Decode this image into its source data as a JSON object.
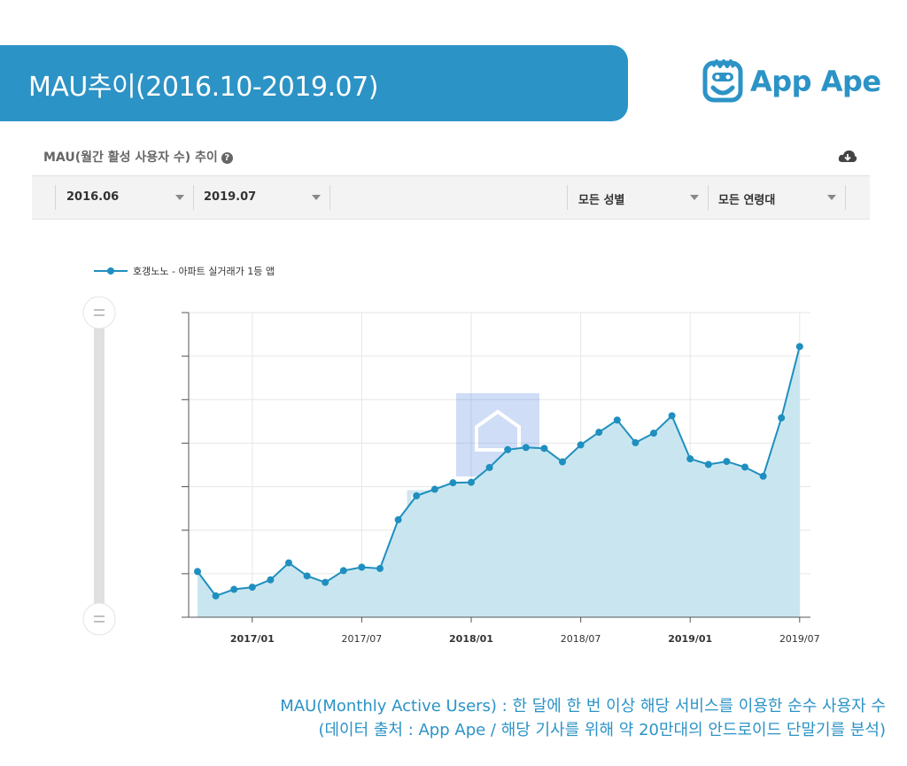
{
  "header": {
    "title": "MAU추이(2016.10-2019.07)",
    "brand": "App Ape",
    "brand_color": "#2c93c6"
  },
  "section": {
    "title": "MAU(월간 활성 사용자 수) 추이",
    "help_icon": "question-circle-icon",
    "download_icon": "cloud-download-icon"
  },
  "filters": {
    "start_date": "2016.06",
    "end_date": "2019.07",
    "gender": "모든 성별",
    "age": "모든 연령대"
  },
  "chart_data": {
    "type": "area",
    "series": [
      {
        "name": "호갱노노 - 아파트 실거래가 1등 앱",
        "color": "#1f8fbf",
        "fill": "#c9e6f0",
        "x": [
          "2016.10",
          "2016.11",
          "2016.12",
          "2017.01",
          "2017.02",
          "2017.03",
          "2017.04",
          "2017.05",
          "2017.06",
          "2017.07",
          "2017.08",
          "2017.09",
          "2017.10",
          "2017.11",
          "2017.12",
          "2018.01",
          "2018.02",
          "2018.03",
          "2018.04",
          "2018.05",
          "2018.06",
          "2018.07",
          "2018.08",
          "2018.09",
          "2018.10",
          "2018.11",
          "2018.12",
          "2019.01",
          "2019.02",
          "2019.03",
          "2019.04",
          "2019.05",
          "2019.06",
          "2019.07"
        ],
        "values": [
          1.05,
          0.49,
          0.64,
          0.69,
          0.86,
          1.25,
          0.95,
          0.8,
          1.07,
          1.15,
          1.12,
          2.24,
          2.79,
          2.94,
          3.09,
          3.1,
          3.44,
          3.85,
          3.9,
          3.88,
          3.57,
          3.96,
          4.25,
          4.53,
          4.01,
          4.23,
          4.63,
          3.64,
          3.51,
          3.58,
          3.45,
          3.24,
          4.58,
          6.22
        ]
      }
    ],
    "x_tick_labels": [
      "2017/01",
      "2017/07",
      "2018/01",
      "2018/07",
      "2019/01",
      "2019/07"
    ],
    "bold_x_ticks": [
      "2017/01",
      "2018/01",
      "2019/01"
    ],
    "ylim": [
      0,
      7
    ],
    "y_tick_labels_shown": false,
    "grid": true,
    "legend": "top-left"
  },
  "footnote": {
    "line1": "MAU(Monthly Active Users) : 한 달에 한 번 이상 해당 서비스를 이용한 순수 사용자 수",
    "line2": "(데이터 출처 : App Ape / 해당 기사를 위해 약 20만대의 안드로이드 단말기를 분석)"
  }
}
